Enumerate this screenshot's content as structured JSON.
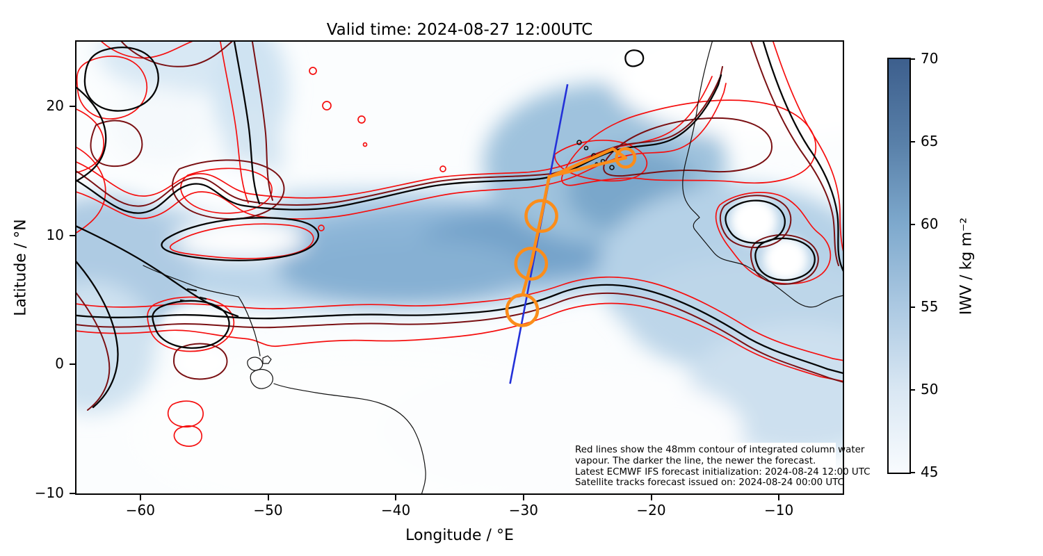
{
  "figure": {
    "title": "Valid time: 2024-08-27 12:00UTC"
  },
  "axes": {
    "xlabel": "Longitude / °E",
    "ylabel": "Latitude / °N",
    "xlim": [
      -65,
      -5
    ],
    "ylim": [
      -10,
      25
    ],
    "x_ticks": [
      {
        "value": -60,
        "label": "−60"
      },
      {
        "value": -50,
        "label": "−50"
      },
      {
        "value": -40,
        "label": "−40"
      },
      {
        "value": -30,
        "label": "−30"
      },
      {
        "value": -20,
        "label": "−20"
      },
      {
        "value": -10,
        "label": "−10"
      }
    ],
    "y_ticks": [
      {
        "value": 20,
        "label": "20"
      },
      {
        "value": 10,
        "label": "10"
      },
      {
        "value": 0,
        "label": "0"
      },
      {
        "value": -10,
        "label": "−10"
      }
    ]
  },
  "colorbar": {
    "label": "IWV / kg m⁻²",
    "min": 45,
    "max": 70,
    "ticks": [
      {
        "value": 70,
        "label": "70"
      },
      {
        "value": 65,
        "label": "65"
      },
      {
        "value": 60,
        "label": "60"
      },
      {
        "value": 55,
        "label": "55"
      },
      {
        "value": 50,
        "label": "50"
      },
      {
        "value": 45,
        "label": "45"
      }
    ],
    "color_top": "#3d5f8d",
    "color_bottom": "#f8fbfe"
  },
  "annotation": {
    "lines": [
      "Red lines show the 48mm contour of integrated column water",
      "vapour. The darker the line, the newer the forecast.",
      "Latest ECMWF IFS forecast initialization: 2024-08-24 12:00 UTC",
      "Satellite tracks forecast issued on: 2024-08-24 00:00 UTC"
    ]
  },
  "chart_data": {
    "type": "heatmap",
    "title": "Valid time: 2024-08-27 12:00UTC",
    "xlabel": "Longitude / °E",
    "ylabel": "Latitude / °N",
    "xlim": [
      -65,
      -5
    ],
    "ylim": [
      -10,
      25
    ],
    "grid": false,
    "field": {
      "name": "IWV",
      "units": "kg m⁻²",
      "colormap": "Blues",
      "range": [
        45,
        70
      ],
      "description": "Tropical Atlantic integrated water vapour band, moist plume from (−65,8) widening eastward to African coast, driest in south-central and top-right corner"
    },
    "contours": {
      "threshold_mm": 48,
      "forecast_line_colors": [
        "#f50f0f",
        "#e00000",
        "#a51414",
        "#7a1013",
        "#000000"
      ],
      "note": "red shades = older to newer forecasts of the 48mm IWV contour; thin black = coastlines"
    },
    "satellite_track": {
      "color": "#fb8d1a",
      "line_width": 4.5,
      "polyline_lonlat": [
        [
          -30.05,
          5.45
        ],
        [
          -29.4,
          7.8
        ],
        [
          -28.6,
          11.5
        ],
        [
          -28.0,
          14.5
        ],
        [
          -23.0,
          16.7
        ],
        [
          -22.0,
          16.0
        ]
      ],
      "return_segment_lonlat": [
        [
          -22.0,
          16.0
        ],
        [
          -28.0,
          14.55
        ]
      ],
      "circles_lonlat": [
        {
          "lon": -30.1,
          "lat": 4.2,
          "r_deg": 1.2
        },
        {
          "lon": -29.4,
          "lat": 7.8,
          "r_deg": 1.2
        },
        {
          "lon": -28.6,
          "lat": 11.5,
          "r_deg": 1.2
        },
        {
          "lon": -22.0,
          "lat": 16.0,
          "r_deg": 0.72
        }
      ]
    },
    "reference_line": {
      "color": "#2431d8",
      "line_width": 2.6,
      "lonlat": [
        [
          -26.55,
          21.7
        ],
        [
          -31.05,
          -1.5
        ]
      ]
    }
  }
}
